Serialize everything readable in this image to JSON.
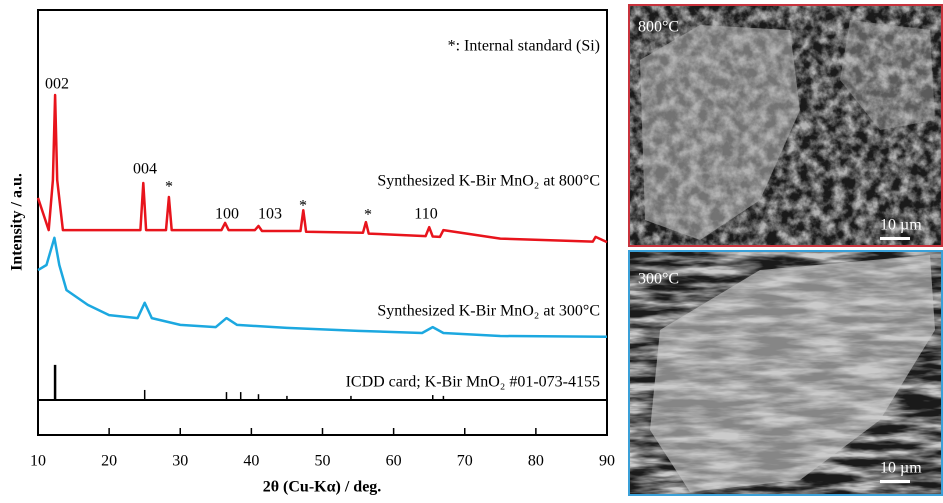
{
  "chart_data": {
    "type": "line",
    "xlabel": "2θ (Cu-Kα) / deg.",
    "ylabel": "Intensity / a.u.",
    "xlim": [
      10,
      90
    ],
    "xticks": [
      10,
      20,
      30,
      40,
      50,
      60,
      70,
      80,
      90
    ],
    "ylim": [
      0,
      100
    ],
    "annotations": [
      "*: Internal standard (Si)",
      "002",
      "004",
      "*",
      "100",
      "103",
      "*",
      "*",
      "110"
    ],
    "series": [
      {
        "name": "Synthesized K-Bir MnO₂ at 800°C",
        "color": "#e8141c",
        "x": [
          10,
          11.5,
          12.1,
          12.4,
          12.7,
          13.5,
          24.4,
          24.8,
          25.2,
          28,
          28.4,
          28.8,
          35.8,
          36.3,
          36.8,
          40.5,
          41,
          41.5,
          46.9,
          47.3,
          47.7,
          55.7,
          56.1,
          56.5,
          64.5,
          65,
          65.5,
          66.5,
          67,
          75,
          88,
          88.4,
          90
        ],
        "values": [
          55.8,
          48.2,
          60,
          80,
          60,
          48.2,
          48.2,
          59.3,
          48.2,
          48.2,
          56,
          48.2,
          48.2,
          49.9,
          48.2,
          48.2,
          49.2,
          48,
          48,
          52.9,
          47.8,
          47.6,
          50.1,
          47.4,
          46.8,
          48.9,
          46.7,
          46.6,
          48.2,
          46.2,
          45.5,
          46.6,
          45.4
        ]
      },
      {
        "name": "Synthesized K-Bir MnO₂ at 300°C",
        "color": "#1ca8e0",
        "x": [
          10,
          11.2,
          12.3,
          13,
          14,
          17,
          20,
          24,
          25,
          26,
          30,
          35,
          36.5,
          38,
          45,
          55,
          64,
          65.5,
          67,
          75,
          90
        ],
        "values": [
          38.8,
          40,
          46.4,
          40,
          34.1,
          30.6,
          28.2,
          27.5,
          31.1,
          27.5,
          25.9,
          25.4,
          27.5,
          25.9,
          25.2,
          24.5,
          24,
          25.4,
          24,
          23.3,
          23.1
        ]
      },
      {
        "name": "ICDD card; K-Bir MnO₂ #01-073-4155",
        "color": "#000000",
        "style": "stick",
        "x": [
          12.4,
          25,
          36.5,
          38.5,
          41,
          45,
          54,
          65.5,
          67
        ],
        "values": [
          16.5,
          10.6,
          10.1,
          10.1,
          9.6,
          9.2,
          9.2,
          9.4,
          9.2
        ]
      }
    ]
  },
  "images": [
    {
      "label": "800°C",
      "scale": "10 µm"
    },
    {
      "label": "300°C",
      "scale": "10 µm"
    }
  ]
}
